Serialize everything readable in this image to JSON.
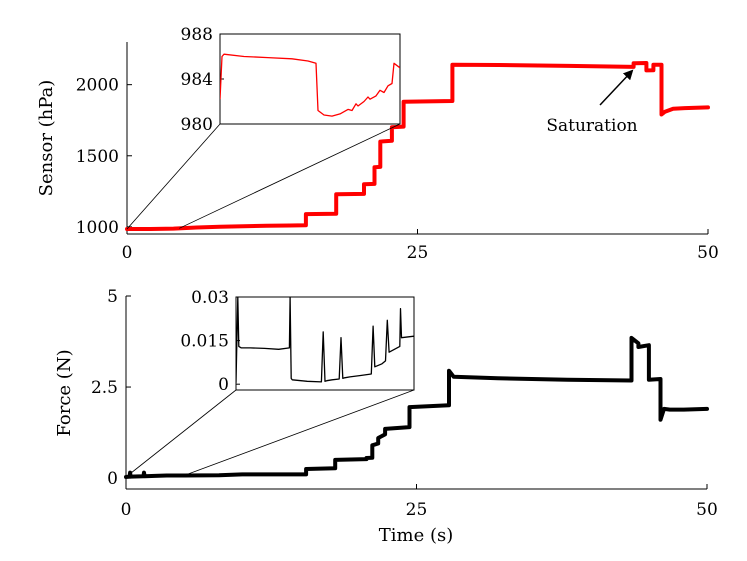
{
  "chart_data": [
    {
      "type": "line",
      "id": "sensor",
      "title": "",
      "xlabel": "",
      "ylabel": "Sensor (hPa)",
      "xlim": [
        0,
        50
      ],
      "ylim": [
        950,
        2300
      ],
      "xticks": [
        "0",
        "25",
        "50"
      ],
      "xtick_values": [
        0,
        25,
        50
      ],
      "yticks": [
        "1000",
        "1500",
        "2000"
      ],
      "ytick_values": [
        1000,
        1500,
        2000
      ],
      "color": "#ff0000",
      "series": [
        {
          "name": "Sensor",
          "x": [
            0,
            2,
            4,
            6,
            8,
            10,
            12,
            14,
            15.4,
            15.4,
            18.0,
            18.0,
            20.4,
            20.4,
            21.3,
            21.3,
            21.8,
            21.8,
            22.8,
            22.8,
            23.8,
            23.8,
            28.0,
            28.0,
            32,
            38,
            43.6,
            43.6,
            44.7,
            44.7,
            45.3,
            45.3,
            46.0,
            46.0,
            46.3,
            47.0,
            48,
            50
          ],
          "y": [
            985,
            985,
            988,
            996,
            1001,
            1005,
            1008,
            1010,
            1012,
            1090,
            1092,
            1230,
            1232,
            1300,
            1302,
            1420,
            1422,
            1600,
            1605,
            1700,
            1705,
            1880,
            1885,
            2140,
            2138,
            2132,
            2125,
            2150,
            2152,
            2100,
            2102,
            2140,
            2140,
            1790,
            1810,
            1830,
            1835,
            1840
          ]
        }
      ],
      "inset": {
        "x_range_main": [
          0,
          4.5
        ],
        "ylim": [
          980,
          988
        ],
        "yticks": [
          "980",
          "984",
          "988"
        ],
        "ytick_values": [
          980,
          984,
          988
        ],
        "x": [
          0,
          0.05,
          0.1,
          0.6,
          1.2,
          1.8,
          2.2,
          2.4,
          2.45,
          2.6,
          2.8,
          3.0,
          3.2,
          3.3,
          3.4,
          3.45,
          3.6,
          3.7,
          3.75,
          3.9,
          4.0,
          4.1,
          4.2,
          4.3,
          4.35,
          4.5
        ],
        "y": [
          982.2,
          986.0,
          986.2,
          986.0,
          985.9,
          985.8,
          985.6,
          985.4,
          981.2,
          980.8,
          980.7,
          980.9,
          981.3,
          981.2,
          981.8,
          981.6,
          982.0,
          982.4,
          982.2,
          982.5,
          983.0,
          982.8,
          983.4,
          983.6,
          985.4,
          985.0
        ]
      },
      "annotation": {
        "text": "Saturation",
        "point_x": 44.3,
        "point_y": 2140
      }
    },
    {
      "type": "line",
      "id": "force",
      "title": "",
      "xlabel": "Time (s)",
      "ylabel": "Force (N)",
      "xlim": [
        0,
        50
      ],
      "ylim": [
        -0.3,
        5
      ],
      "xticks": [
        "0",
        "25",
        "50"
      ],
      "xtick_values": [
        0,
        25,
        50
      ],
      "yticks": [
        "0",
        "2.5",
        "5"
      ],
      "ytick_values": [
        0,
        2.5,
        5
      ],
      "color": "#000000",
      "series": [
        {
          "name": "Force",
          "x": [
            0,
            0.3,
            0.35,
            0.4,
            1.5,
            1.55,
            1.6,
            2.5,
            3.5,
            5,
            8,
            10,
            12,
            14,
            15.5,
            15.5,
            18.0,
            18.0,
            20.7,
            20.7,
            21.2,
            21.2,
            21.7,
            21.7,
            22.3,
            22.3,
            24.4,
            24.4,
            27.8,
            27.8,
            28.2,
            32,
            38,
            43.5,
            43.5,
            44.1,
            44.1,
            45.0,
            45.0,
            46.0,
            46.0,
            46.3,
            46.8,
            48,
            50
          ],
          "y": [
            0.03,
            0.04,
            0.15,
            0.04,
            0.05,
            0.15,
            0.05,
            0.06,
            0.07,
            0.07,
            0.08,
            0.1,
            0.1,
            0.1,
            0.1,
            0.25,
            0.27,
            0.5,
            0.52,
            0.55,
            0.56,
            0.9,
            0.95,
            1.1,
            1.2,
            1.35,
            1.4,
            1.95,
            2.0,
            2.95,
            2.78,
            2.74,
            2.7,
            2.68,
            3.85,
            3.7,
            3.6,
            3.65,
            2.7,
            2.72,
            1.6,
            1.9,
            1.88,
            1.88,
            1.9
          ]
        }
      ],
      "inset": {
        "x_range_main": [
          0,
          5
        ],
        "ylim": [
          -0.002,
          0.03
        ],
        "yticks": [
          "0",
          "0.015",
          "0.03"
        ],
        "ytick_values": [
          0,
          0.015,
          0.03
        ],
        "x": [
          0,
          0.05,
          0.08,
          0.15,
          0.4,
          0.8,
          1.2,
          1.5,
          1.52,
          1.55,
          1.58,
          2.0,
          2.4,
          2.45,
          2.5,
          2.55,
          2.7,
          2.9,
          2.95,
          3.0,
          3.05,
          3.2,
          3.5,
          3.8,
          3.85,
          3.9,
          4.1,
          4.2,
          4.25,
          4.3,
          4.6,
          4.62,
          4.65,
          5.0
        ],
        "y": [
          0.0005,
          0.03,
          0.013,
          0.0125,
          0.0125,
          0.0123,
          0.012,
          0.0125,
          0.03,
          0.002,
          0.0015,
          0.001,
          0.0008,
          0.018,
          0.001,
          0.0012,
          0.0015,
          0.0018,
          0.016,
          0.002,
          0.0022,
          0.0025,
          0.003,
          0.0035,
          0.02,
          0.006,
          0.007,
          0.008,
          0.022,
          0.011,
          0.013,
          0.026,
          0.016,
          0.0165
        ]
      }
    }
  ]
}
